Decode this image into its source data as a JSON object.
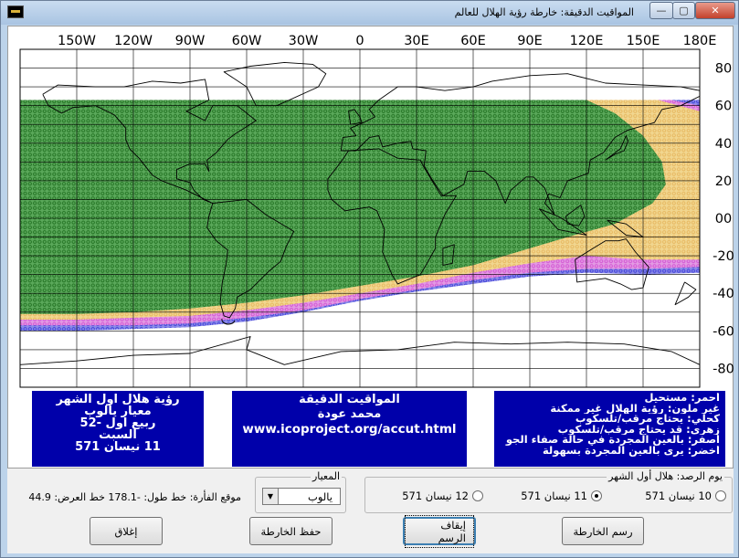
{
  "window": {
    "title": "المواقيت الدقيقة: خارطة رؤية الهلال للعالم",
    "min_glyph": "—",
    "max_glyph": "▢",
    "close_glyph": "✕"
  },
  "map": {
    "x_labels": [
      "150W",
      "120W",
      "90W",
      "60W",
      "30W",
      "0",
      "30E",
      "60E",
      "90E",
      "120E",
      "150E",
      "180E"
    ],
    "y_labels": [
      "80",
      "60",
      "40",
      "20",
      "00",
      "-20",
      "-40",
      "-60",
      "-80"
    ],
    "colors": {
      "green": "#2e8b2e",
      "yellow": "#f1d68f",
      "magenta": "#d24fd2",
      "blue": "#3a3ad8",
      "grid": "#000000"
    }
  },
  "info_left": {
    "lines": [
      "رؤية هلال أول الشهر",
      "معيار يالوب",
      "ربيع أول -52",
      "السبت",
      "11 نيسان 571"
    ]
  },
  "info_mid": {
    "line1": "المواقيت الدقيقة",
    "line2": "محمد عودة",
    "url": "www.icoproject.org/accut.html"
  },
  "info_right": {
    "lines": [
      "أحمر: مستحيل",
      "غير ملون: رؤية الهلال غير ممكنة",
      "كحلي: يحتاج مرقب/تلسكوب",
      "زهري: قد يحتاج مرقب/تلسكوب",
      "أصفر: بالعين المجردة في حالة صفاء الجو",
      "أخضر: يرى بالعين المجردة بسهولة"
    ]
  },
  "observation": {
    "legend": "يوم الرصد: هلال أول الشهر",
    "options": [
      "10 نيسان 571",
      "11 نيسان 571",
      "12 نيسان 571"
    ],
    "selected_index": 1
  },
  "criterion": {
    "legend": "المعيار",
    "value": "يالوب"
  },
  "mouse_position": "موقع الفأرة: خط طول: -178.1 خط العرض: 44.9",
  "buttons": {
    "close": "إغلاق",
    "save": "حفظ الخارطة",
    "stop": "إيقاف الرسم",
    "draw": "رسم الخارطة"
  }
}
